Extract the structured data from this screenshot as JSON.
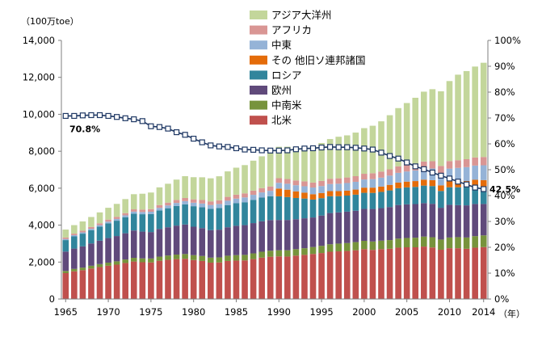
{
  "chart_data": {
    "type": "bar",
    "stacked": true,
    "left_axis_unit": "（100万toe）",
    "right_axis_unit": "（年）",
    "x_tick_labels": [
      "1965",
      "1970",
      "1975",
      "1980",
      "1985",
      "1990",
      "1995",
      "2000",
      "2005",
      "2010",
      "2014"
    ],
    "left_ticks": [
      "0",
      "2,000",
      "4,000",
      "6,000",
      "8,000",
      "10,000",
      "12,000",
      "14,000"
    ],
    "right_ticks": [
      "0%",
      "10%",
      "20%",
      "30%",
      "40%",
      "50%",
      "60%",
      "70%",
      "80%",
      "90%",
      "100%"
    ],
    "ylim": [
      0,
      14000
    ],
    "y2lim": [
      0,
      100
    ],
    "grid": false,
    "legend_position": "top-center",
    "x": [
      1965,
      1966,
      1967,
      1968,
      1969,
      1970,
      1971,
      1972,
      1973,
      1974,
      1975,
      1976,
      1977,
      1978,
      1979,
      1980,
      1981,
      1982,
      1983,
      1984,
      1985,
      1986,
      1987,
      1988,
      1989,
      1990,
      1991,
      1992,
      1993,
      1994,
      1995,
      1996,
      1997,
      1998,
      1999,
      2000,
      2001,
      2002,
      2003,
      2004,
      2005,
      2006,
      2007,
      2008,
      2009,
      2010,
      2011,
      2012,
      2013,
      2014
    ],
    "series": [
      {
        "name": "北米",
        "color": "#c0504d",
        "values": [
          1400,
          1500,
          1560,
          1650,
          1730,
          1800,
          1860,
          1950,
          2030,
          1990,
          1980,
          2070,
          2120,
          2160,
          2180,
          2110,
          2060,
          1970,
          1980,
          2060,
          2080,
          2090,
          2160,
          2240,
          2290,
          2310,
          2300,
          2350,
          2390,
          2440,
          2490,
          2560,
          2580,
          2600,
          2640,
          2700,
          2660,
          2700,
          2720,
          2780,
          2800,
          2800,
          2840,
          2790,
          2670,
          2750,
          2750,
          2720,
          2780,
          2810
        ]
      },
      {
        "name": "中南米",
        "color": "#77933c",
        "values": [
          120,
          130,
          140,
          150,
          160,
          170,
          180,
          190,
          200,
          210,
          215,
          225,
          235,
          245,
          255,
          265,
          270,
          270,
          275,
          285,
          295,
          300,
          310,
          320,
          325,
          330,
          340,
          350,
          360,
          375,
          390,
          405,
          420,
          430,
          440,
          450,
          455,
          460,
          470,
          490,
          505,
          520,
          540,
          555,
          550,
          580,
          600,
          610,
          625,
          635
        ]
      },
      {
        "name": "欧州",
        "color": "#604a7b",
        "values": [
          1050,
          1100,
          1150,
          1210,
          1270,
          1330,
          1370,
          1420,
          1480,
          1450,
          1430,
          1500,
          1530,
          1570,
          1600,
          1540,
          1510,
          1490,
          1500,
          1540,
          1590,
          1610,
          1640,
          1650,
          1660,
          1640,
          1640,
          1620,
          1620,
          1600,
          1640,
          1690,
          1690,
          1700,
          1700,
          1730,
          1760,
          1760,
          1790,
          1820,
          1820,
          1820,
          1810,
          1810,
          1720,
          1770,
          1730,
          1740,
          1740,
          1700
        ]
      },
      {
        "name": "ロシア",
        "color": "#31859c",
        "values": [
          620,
          660,
          690,
          720,
          760,
          800,
          830,
          870,
          910,
          940,
          970,
          1000,
          1030,
          1060,
          1090,
          1110,
          1130,
          1150,
          1170,
          1200,
          1220,
          1240,
          1260,
          1280,
          1290,
          1280,
          1240,
          1150,
          1070,
          970,
          940,
          910,
          880,
          870,
          870,
          870,
          870,
          880,
          900,
          910,
          920,
          930,
          950,
          960,
          910,
          950,
          970,
          990,
          980,
          960
        ]
      },
      {
        "name": "その 他旧ソ連邦諸国",
        "color": "#e46c0a",
        "values": [
          0,
          0,
          0,
          0,
          0,
          0,
          0,
          0,
          0,
          0,
          0,
          0,
          0,
          0,
          0,
          0,
          0,
          0,
          0,
          0,
          0,
          0,
          0,
          0,
          0,
          420,
          400,
          360,
          320,
          290,
          280,
          275,
          270,
          270,
          275,
          280,
          285,
          290,
          300,
          305,
          310,
          315,
          320,
          320,
          305,
          320,
          330,
          330,
          330,
          335
        ]
      },
      {
        "name": "中東",
        "color": "#95b3d7",
        "values": [
          60,
          65,
          70,
          75,
          80,
          90,
          95,
          100,
          110,
          120,
          130,
          140,
          150,
          165,
          175,
          190,
          200,
          210,
          220,
          235,
          250,
          260,
          270,
          280,
          290,
          310,
          320,
          330,
          345,
          360,
          375,
          385,
          400,
          410,
          420,
          440,
          460,
          480,
          500,
          525,
          550,
          575,
          600,
          630,
          650,
          690,
          720,
          750,
          770,
          800
        ]
      },
      {
        "name": "アフリカ",
        "color": "#d99694",
        "values": [
          80,
          85,
          90,
          95,
          100,
          110,
          115,
          120,
          125,
          130,
          140,
          150,
          155,
          165,
          170,
          180,
          190,
          195,
          200,
          210,
          215,
          220,
          230,
          235,
          240,
          250,
          255,
          260,
          265,
          270,
          280,
          285,
          295,
          300,
          305,
          310,
          320,
          330,
          340,
          355,
          365,
          375,
          385,
          395,
          400,
          410,
          415,
          430,
          440,
          450
        ]
      },
      {
        "name": "アジア大洋州",
        "color": "#c3d69b",
        "values": [
          430,
          460,
          500,
          540,
          590,
          640,
          700,
          760,
          820,
          860,
          900,
          960,
          1020,
          1100,
          1180,
          1200,
          1230,
          1250,
          1300,
          1380,
          1460,
          1530,
          1620,
          1720,
          1800,
          1700,
          1750,
          1800,
          1880,
          1960,
          2050,
          2150,
          2250,
          2280,
          2360,
          2470,
          2570,
          2720,
          2930,
          3150,
          3340,
          3560,
          3780,
          3900,
          4040,
          4330,
          4630,
          4770,
          4920,
          5100
        ]
      }
    ],
    "line_series": {
      "axis": "right",
      "marker": "square-open",
      "color": "#1f3864",
      "values": [
        70.8,
        70.8,
        71.0,
        71.1,
        71.1,
        70.8,
        70.4,
        69.9,
        69.5,
        68.8,
        66.8,
        66.5,
        65.9,
        64.5,
        63.5,
        62.0,
        60.6,
        59.4,
        59.0,
        58.8,
        58.3,
        57.8,
        57.7,
        57.5,
        57.4,
        57.4,
        57.5,
        57.9,
        58.2,
        58.3,
        58.6,
        58.8,
        58.7,
        58.7,
        58.5,
        58.2,
        57.8,
        56.6,
        55.3,
        54.3,
        52.8,
        51.3,
        50.2,
        48.9,
        47.7,
        46.6,
        45.4,
        44.3,
        43.1,
        42.5
      ]
    },
    "annotations": [
      {
        "text": "70.8%",
        "year": 1965,
        "value": 70.8
      },
      {
        "text": "42.5%",
        "year": 2014,
        "value": 42.5
      }
    ]
  }
}
